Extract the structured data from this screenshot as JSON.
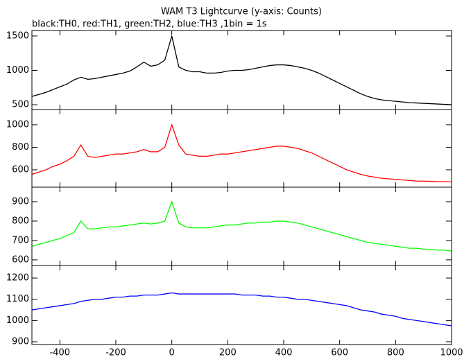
{
  "chart_data": [
    {
      "type": "line",
      "title": "WAM T3 Lightcurve (y-axis: Counts)",
      "subtitle": "black:TH0, red:TH1, green:TH2, blue:TH3 ,1bin = 1s",
      "x": [
        -500,
        -475,
        -450,
        -425,
        -400,
        -375,
        -350,
        -325,
        -300,
        -275,
        -250,
        -225,
        -200,
        -175,
        -150,
        -125,
        -100,
        -75,
        -50,
        -25,
        0,
        25,
        50,
        75,
        100,
        125,
        150,
        175,
        200,
        225,
        250,
        275,
        300,
        325,
        350,
        375,
        400,
        425,
        450,
        475,
        500,
        525,
        550,
        575,
        600,
        625,
        650,
        675,
        700,
        725,
        750,
        775,
        800,
        825,
        850,
        875,
        900,
        925,
        950,
        975,
        1000
      ],
      "series": [
        {
          "name": "TH0",
          "color": "#000000",
          "values": [
            620,
            650,
            680,
            720,
            760,
            800,
            860,
            900,
            870,
            880,
            900,
            920,
            940,
            960,
            990,
            1050,
            1120,
            1060,
            1080,
            1150,
            1500,
            1050,
            1000,
            980,
            980,
            960,
            960,
            970,
            990,
            1000,
            1000,
            1010,
            1030,
            1050,
            1070,
            1080,
            1080,
            1070,
            1050,
            1030,
            1000,
            960,
            910,
            860,
            810,
            760,
            710,
            660,
            620,
            590,
            570,
            560,
            550,
            540,
            530,
            525,
            520,
            515,
            510,
            505,
            500
          ]
        }
      ],
      "xlim": [
        -500,
        1000
      ],
      "xticks": [
        -400,
        -200,
        0,
        200,
        400,
        600,
        800,
        1000
      ],
      "ylim": [
        430,
        1580
      ],
      "yticks": [
        500,
        1000,
        1500
      ]
    },
    {
      "type": "line",
      "x": [
        -500,
        -475,
        -450,
        -425,
        -400,
        -375,
        -350,
        -325,
        -300,
        -275,
        -250,
        -225,
        -200,
        -175,
        -150,
        -125,
        -100,
        -75,
        -50,
        -25,
        0,
        25,
        50,
        75,
        100,
        125,
        150,
        175,
        200,
        225,
        250,
        275,
        300,
        325,
        350,
        375,
        400,
        425,
        450,
        475,
        500,
        525,
        550,
        575,
        600,
        625,
        650,
        675,
        700,
        725,
        750,
        775,
        800,
        825,
        850,
        875,
        900,
        925,
        950,
        975,
        1000
      ],
      "series": [
        {
          "name": "TH1",
          "color": "#ff0000",
          "values": [
            560,
            580,
            600,
            630,
            650,
            680,
            720,
            820,
            720,
            710,
            720,
            730,
            740,
            740,
            750,
            760,
            780,
            760,
            760,
            800,
            1000,
            820,
            740,
            730,
            720,
            720,
            730,
            740,
            740,
            750,
            760,
            770,
            780,
            790,
            800,
            810,
            810,
            800,
            790,
            770,
            750,
            720,
            690,
            660,
            630,
            600,
            580,
            560,
            545,
            535,
            525,
            520,
            515,
            510,
            505,
            500,
            500,
            498,
            495,
            495,
            492
          ]
        }
      ],
      "xlim": [
        -500,
        1000
      ],
      "xticks": [
        -400,
        -200,
        0,
        200,
        400,
        600,
        800,
        1000
      ],
      "ylim": [
        446,
        1135
      ],
      "yticks": [
        600,
        800,
        1000
      ]
    },
    {
      "type": "line",
      "x": [
        -500,
        -475,
        -450,
        -425,
        -400,
        -375,
        -350,
        -325,
        -300,
        -275,
        -250,
        -225,
        -200,
        -175,
        -150,
        -125,
        -100,
        -75,
        -50,
        -25,
        0,
        25,
        50,
        75,
        100,
        125,
        150,
        175,
        200,
        225,
        250,
        275,
        300,
        325,
        350,
        375,
        400,
        425,
        450,
        475,
        500,
        525,
        550,
        575,
        600,
        625,
        650,
        675,
        700,
        725,
        750,
        775,
        800,
        825,
        850,
        875,
        900,
        925,
        950,
        975,
        1000
      ],
      "series": [
        {
          "name": "TH2",
          "color": "#00ff00",
          "values": [
            670,
            680,
            690,
            700,
            710,
            725,
            740,
            800,
            760,
            760,
            765,
            770,
            770,
            775,
            780,
            785,
            790,
            785,
            790,
            800,
            900,
            790,
            770,
            765,
            765,
            765,
            770,
            775,
            780,
            780,
            785,
            790,
            790,
            795,
            795,
            800,
            800,
            795,
            790,
            780,
            770,
            760,
            750,
            740,
            730,
            720,
            710,
            700,
            690,
            685,
            680,
            675,
            670,
            665,
            660,
            660,
            655,
            655,
            650,
            650,
            645
          ]
        }
      ],
      "xlim": [
        -500,
        1000
      ],
      "xticks": [
        -400,
        -200,
        0,
        200,
        400,
        600,
        800,
        1000
      ],
      "ylim": [
        571,
        975
      ],
      "yticks": [
        600,
        700,
        800,
        900
      ]
    },
    {
      "type": "line",
      "x": [
        -500,
        -475,
        -450,
        -425,
        -400,
        -375,
        -350,
        -325,
        -300,
        -275,
        -250,
        -225,
        -200,
        -175,
        -150,
        -125,
        -100,
        -75,
        -50,
        -25,
        0,
        25,
        50,
        75,
        100,
        125,
        150,
        175,
        200,
        225,
        250,
        275,
        300,
        325,
        350,
        375,
        400,
        425,
        450,
        475,
        500,
        525,
        550,
        575,
        600,
        625,
        650,
        675,
        700,
        725,
        750,
        775,
        800,
        825,
        850,
        875,
        900,
        925,
        950,
        975,
        1000
      ],
      "series": [
        {
          "name": "TH3",
          "color": "#0000ff",
          "values": [
            1050,
            1055,
            1060,
            1065,
            1070,
            1075,
            1080,
            1090,
            1095,
            1100,
            1100,
            1105,
            1110,
            1110,
            1115,
            1115,
            1120,
            1120,
            1120,
            1125,
            1130,
            1125,
            1125,
            1125,
            1125,
            1125,
            1125,
            1125,
            1125,
            1125,
            1120,
            1120,
            1120,
            1115,
            1115,
            1110,
            1110,
            1105,
            1100,
            1100,
            1095,
            1090,
            1085,
            1080,
            1075,
            1070,
            1060,
            1050,
            1045,
            1040,
            1030,
            1025,
            1020,
            1010,
            1005,
            1000,
            995,
            990,
            985,
            980,
            975
          ]
        }
      ],
      "xlim": [
        -500,
        1000
      ],
      "xticks": [
        -400,
        -200,
        0,
        200,
        400,
        600,
        800,
        1000
      ],
      "ylim": [
        887,
        1259
      ],
      "yticks": [
        900,
        1000,
        1100,
        1200
      ]
    }
  ]
}
